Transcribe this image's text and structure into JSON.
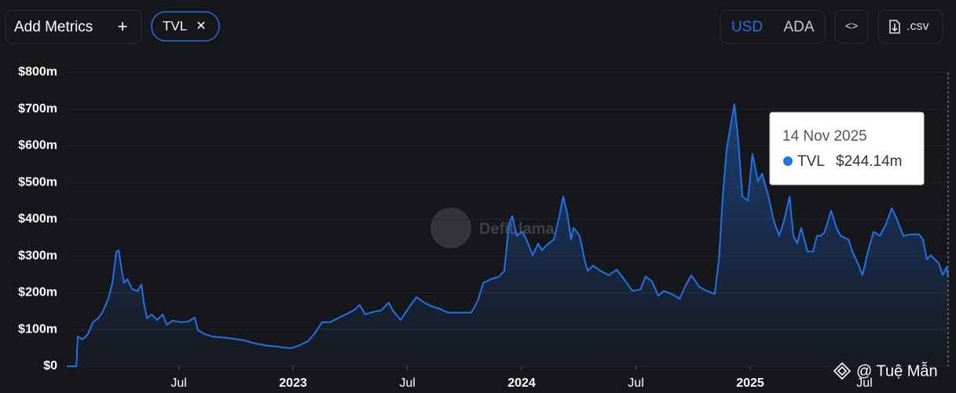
{
  "controls": {
    "add_metrics": "Add Metrics",
    "add_icon": "+",
    "chip": "TVL",
    "chip_close": "✕",
    "currency_options": [
      "USD",
      "ADA"
    ],
    "embed": "<>",
    "csv": ".csv"
  },
  "watermarks": {
    "center": "DefiLlama",
    "corner": "@ Tuệ Mẫn"
  },
  "chart_data": {
    "type": "area",
    "series": [
      {
        "name": "TVL",
        "color": "#2172e5",
        "x": [
          2022.01,
          2022.052,
          2022.058,
          2022.079,
          2022.103,
          2022.124,
          2022.148,
          2022.165,
          2022.192,
          2022.21,
          2022.227,
          2022.237,
          2022.251,
          2022.261,
          2022.275,
          2022.296,
          2022.32,
          2022.337,
          2022.347,
          2022.361,
          2022.381,
          2022.405,
          2022.43,
          2022.447,
          2022.474,
          2022.509,
          2022.543,
          2022.57,
          2022.584,
          2022.612,
          2022.646,
          2022.715,
          2022.784,
          2022.835,
          2022.887,
          2022.938,
          2022.99,
          2023.024,
          2023.065,
          2023.093,
          2023.127,
          2023.162,
          2023.196,
          2023.23,
          2023.265,
          2023.292,
          2023.316,
          2023.351,
          2023.385,
          2023.419,
          2023.436,
          2023.471,
          2023.498,
          2023.522,
          2023.54,
          2023.574,
          2023.608,
          2023.643,
          2023.677,
          2023.711,
          2023.746,
          2023.78,
          2023.808,
          2023.832,
          2023.866,
          2023.9,
          2023.924,
          2023.945,
          2023.959,
          2023.979,
          2024.003,
          2024.021,
          2024.048,
          2024.072,
          2024.089,
          2024.117,
          2024.141,
          2024.165,
          2024.182,
          2024.199,
          2024.216,
          2024.227,
          2024.254,
          2024.275,
          2024.289,
          2024.313,
          2024.347,
          2024.381,
          2024.416,
          2024.45,
          2024.485,
          2024.519,
          2024.543,
          2024.57,
          2024.598,
          2024.622,
          2024.656,
          2024.691,
          2024.715,
          2024.742,
          2024.777,
          2024.811,
          2024.845,
          2024.863,
          2024.88,
          2024.897,
          2024.914,
          2024.931,
          2024.948,
          2024.966,
          2024.99,
          2025.01,
          2025.034,
          2025.052,
          2025.079,
          2025.103,
          2025.127,
          2025.148,
          2025.172,
          2025.189,
          2025.206,
          2025.223,
          2025.251,
          2025.275,
          2025.292,
          2025.309,
          2025.326,
          2025.354,
          2025.378,
          2025.395,
          2025.43,
          2025.447,
          2025.471,
          2025.491,
          2025.515,
          2025.54,
          2025.567,
          2025.595,
          2025.619,
          2025.636,
          2025.67,
          2025.704,
          2025.739,
          2025.756,
          2025.773,
          2025.79,
          2025.808,
          2025.825,
          2025.842,
          2025.859,
          2025.866
        ],
        "values": [
          0,
          0,
          81,
          73,
          88,
          120,
          131,
          146,
          184,
          227,
          312,
          316,
          259,
          227,
          237,
          210,
          205,
          223,
          173,
          131,
          141,
          126,
          141,
          113,
          124,
          120,
          122,
          133,
          98,
          88,
          81,
          77,
          71,
          62,
          56,
          53,
          49,
          56,
          68,
          88,
          120,
          120,
          131,
          141,
          152,
          167,
          141,
          148,
          152,
          173,
          152,
          126,
          152,
          173,
          188,
          173,
          163,
          156,
          146,
          146,
          146,
          146,
          178,
          227,
          237,
          244,
          259,
          388,
          409,
          355,
          366,
          345,
          302,
          334,
          316,
          334,
          345,
          409,
          462,
          419,
          345,
          377,
          355,
          291,
          259,
          274,
          259,
          248,
          263,
          235,
          205,
          209,
          244,
          231,
          192,
          205,
          197,
          184,
          216,
          248,
          216,
          205,
          197,
          291,
          462,
          590,
          654,
          714,
          612,
          462,
          451,
          578,
          503,
          524,
          465,
          396,
          355,
          396,
          462,
          355,
          334,
          377,
          312,
          312,
          355,
          355,
          366,
          423,
          377,
          355,
          345,
          312,
          280,
          248,
          312,
          366,
          355,
          388,
          430,
          409,
          355,
          359,
          359,
          345,
          291,
          302,
          291,
          280,
          248,
          270,
          244.14
        ]
      }
    ],
    "xlim": [
      2022.01,
      2025.866
    ],
    "xticks": [
      {
        "value": 2022.5,
        "label": "Jul"
      },
      2023,
      {
        "value": 2023.5,
        "label": "Jul"
      },
      2024,
      {
        "value": 2024.5,
        "label": "Jul"
      },
      2025,
      {
        "value": 2025.5,
        "label": "Jul"
      }
    ],
    "ylim": [
      0,
      800
    ],
    "yticks": [
      {
        "value": 0,
        "label": "$0"
      },
      {
        "value": 100,
        "label": "$100m"
      },
      {
        "value": 200,
        "label": "$200m"
      },
      {
        "value": 300,
        "label": "$300m"
      },
      {
        "value": 400,
        "label": "$400m"
      },
      {
        "value": 500,
        "label": "$500m"
      },
      {
        "value": 600,
        "label": "$600m"
      },
      {
        "value": 700,
        "label": "$700m"
      },
      {
        "value": 800,
        "label": "$800m"
      }
    ],
    "grid": true,
    "tooltip": {
      "date": "14 Nov 2025",
      "series": "TVL",
      "x": 2025.866,
      "value": 244.14,
      "value_label": "$244.14m"
    }
  }
}
